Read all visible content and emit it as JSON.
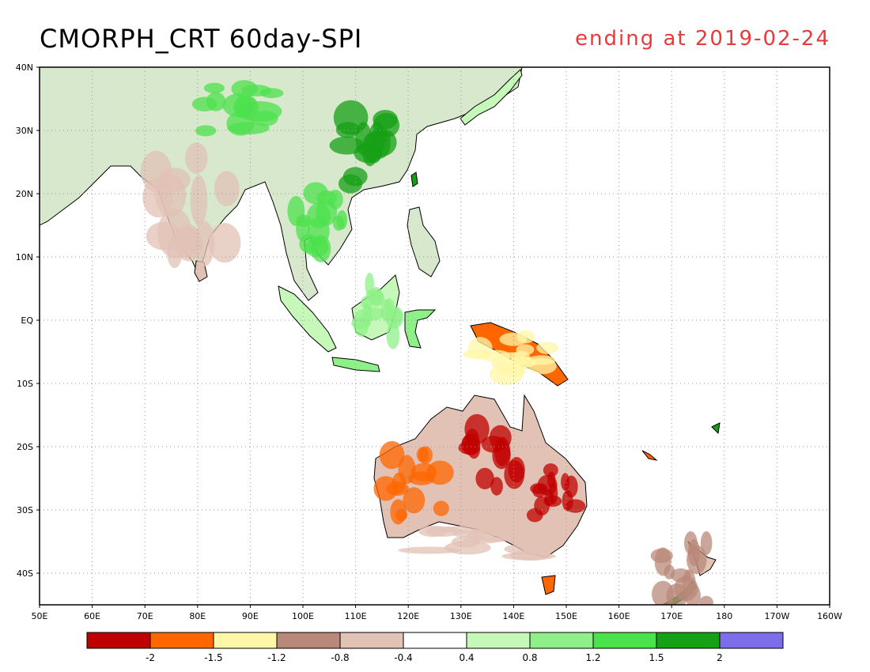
{
  "title": "CMORPH_CRT 60day-SPI",
  "subtitle": "ending at 2019-02-24",
  "colors": {
    "subtitle": "#e83a3a",
    "grid": "#9a9a9a",
    "coast": "#000000",
    "land": "#ffffff"
  },
  "map": {
    "lon_range": [
      50,
      200
    ],
    "lat_range": [
      -45,
      40
    ],
    "lon_ticks": [
      {
        "lon": 50,
        "label": "50E"
      },
      {
        "lon": 60,
        "label": "60E"
      },
      {
        "lon": 70,
        "label": "70E"
      },
      {
        "lon": 80,
        "label": "80E"
      },
      {
        "lon": 90,
        "label": "90E"
      },
      {
        "lon": 100,
        "label": "100E"
      },
      {
        "lon": 110,
        "label": "110E"
      },
      {
        "lon": 120,
        "label": "120E"
      },
      {
        "lon": 130,
        "label": "130E"
      },
      {
        "lon": 140,
        "label": "140E"
      },
      {
        "lon": 150,
        "label": "150E"
      },
      {
        "lon": 160,
        "label": "160E"
      },
      {
        "lon": 170,
        "label": "170E"
      },
      {
        "lon": 180,
        "label": "180"
      },
      {
        "lon": 190,
        "label": "170W"
      },
      {
        "lon": 200,
        "label": "160W"
      }
    ],
    "lat_ticks": [
      {
        "lat": 40,
        "label": "40N"
      },
      {
        "lat": 30,
        "label": "30N"
      },
      {
        "lat": 20,
        "label": "20N"
      },
      {
        "lat": 10,
        "label": "10N"
      },
      {
        "lat": 0,
        "label": "EQ"
      },
      {
        "lat": -10,
        "label": "10S"
      },
      {
        "lat": -20,
        "label": "20S"
      },
      {
        "lat": -30,
        "label": "30S"
      },
      {
        "lat": -40,
        "label": "40S"
      }
    ]
  },
  "legend": {
    "colors": [
      "#c00000",
      "#ff6600",
      "#fff7a8",
      "#b8887a",
      "#e2c2b5",
      "#ffffff",
      "#c6f9b9",
      "#8ff08a",
      "#4ce24c",
      "#16a016",
      "#7b6ee8"
    ],
    "labels": [
      "-2",
      "-1.5",
      "-1.2",
      "-0.8",
      "-0.4",
      "0.4",
      "0.8",
      "1.2",
      "1.5",
      "2"
    ]
  },
  "spi_regions": [
    {
      "name": "Eastern China",
      "class": 9,
      "lon": [
        105,
        122
      ],
      "lat": [
        20,
        34
      ]
    },
    {
      "name": "Indian subcontinent",
      "class": 4,
      "lon": [
        70,
        88
      ],
      "lat": [
        8,
        28
      ]
    },
    {
      "name": "Tibetan Plateau",
      "class": 8,
      "lon": [
        78,
        100
      ],
      "lat": [
        28,
        38
      ]
    },
    {
      "name": "Indochina",
      "class": 8,
      "lon": [
        97,
        109
      ],
      "lat": [
        10,
        22
      ]
    },
    {
      "name": "Borneo",
      "class": 7,
      "lon": [
        109,
        119
      ],
      "lat": [
        -4,
        7
      ]
    },
    {
      "name": "New Guinea",
      "class": 2,
      "lon": [
        131,
        150
      ],
      "lat": [
        -10,
        -1
      ]
    },
    {
      "name": "Central Australia",
      "class": 0,
      "lon": [
        130,
        143
      ],
      "lat": [
        -28,
        -16
      ]
    },
    {
      "name": "Eastern Australia",
      "class": 0,
      "lon": [
        143,
        153
      ],
      "lat": [
        -32,
        -22
      ]
    },
    {
      "name": "Western Australia",
      "class": 1,
      "lon": [
        114,
        128
      ],
      "lat": [
        -32,
        -20
      ]
    },
    {
      "name": "Southern Australia",
      "class": 4,
      "lon": [
        120,
        150
      ],
      "lat": [
        -38,
        -32
      ]
    },
    {
      "name": "New Zealand",
      "class": 3,
      "lon": [
        166,
        178
      ],
      "lat": [
        -46,
        -34
      ]
    }
  ]
}
